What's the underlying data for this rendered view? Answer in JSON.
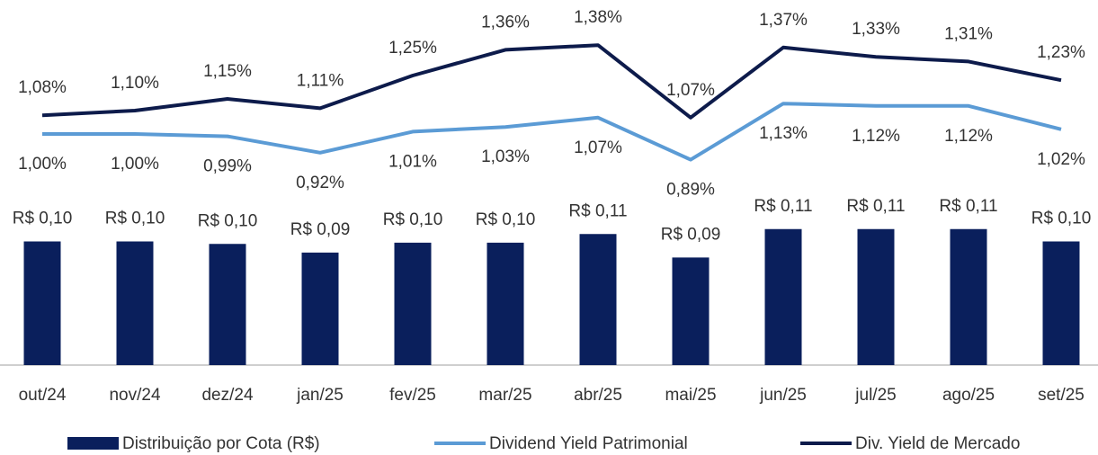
{
  "chart_data": {
    "type": "combo",
    "categories": [
      "out/24",
      "nov/24",
      "dez/24",
      "jan/25",
      "fev/25",
      "mar/25",
      "abr/25",
      "mai/25",
      "jun/25",
      "jul/25",
      "ago/25",
      "set/25"
    ],
    "ylim": [
      0,
      0.16
    ],
    "y2lim": [
      0.5,
      1.5
    ],
    "series": [
      {
        "name": "Distribuição por Cota (R$)",
        "type": "bar",
        "color": "#0a1f5c",
        "values": [
          0.1,
          0.1,
          0.098,
          0.091,
          0.099,
          0.099,
          0.106,
          0.087,
          0.11,
          0.11,
          0.11,
          0.1
        ],
        "value_labels": [
          "R$ 0,10",
          "R$ 0,10",
          "R$ 0,10",
          "R$ 0,09",
          "R$ 0,10",
          "R$ 0,10",
          "R$ 0,11",
          "R$ 0,09",
          "R$ 0,11",
          "R$ 0,11",
          "R$ 0,11",
          "R$ 0,10"
        ]
      },
      {
        "name": "Dividend Yield Patrimonial",
        "type": "line",
        "axis": "y2",
        "color": "#5b9bd5",
        "values": [
          1.0,
          1.0,
          0.99,
          0.92,
          1.01,
          1.03,
          1.07,
          0.89,
          1.13,
          1.12,
          1.12,
          1.02
        ],
        "value_labels": [
          "1,00%",
          "1,00%",
          "0,99%",
          "0,92%",
          "1,01%",
          "1,03%",
          "1,07%",
          "0,89%",
          "1,13%",
          "1,12%",
          "1,12%",
          "1,02%"
        ]
      },
      {
        "name": "Div. Yield de Mercado",
        "type": "line",
        "axis": "y2",
        "color": "#0d1b4b",
        "values": [
          1.08,
          1.1,
          1.15,
          1.11,
          1.25,
          1.36,
          1.38,
          1.07,
          1.37,
          1.33,
          1.31,
          1.23
        ],
        "value_labels": [
          "1,08%",
          "1,10%",
          "1,15%",
          "1,11%",
          "1,25%",
          "1,36%",
          "1,38%",
          "1,07%",
          "1,37%",
          "1,33%",
          "1,31%",
          "1,23%"
        ]
      }
    ]
  }
}
